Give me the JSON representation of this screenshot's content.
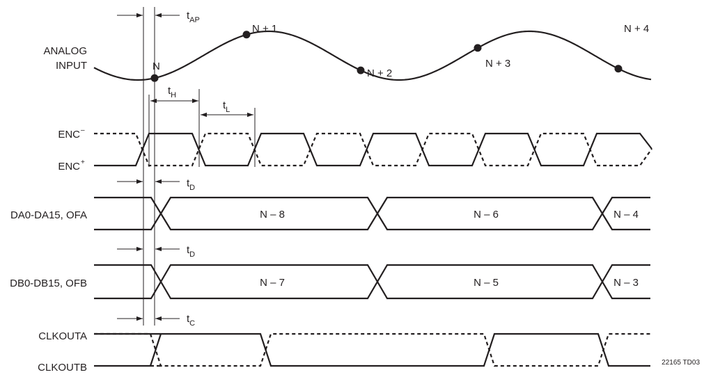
{
  "signals": {
    "analog_input_line1": "ANALOG",
    "analog_input_line2": "INPUT",
    "enc_minus": "ENC",
    "enc_minus_sup": "–",
    "enc_plus": "ENC",
    "enc_plus_sup": "+",
    "da_bus": "DA0-DA15, OFA",
    "db_bus": "DB0-DB15, OFB",
    "clkouta": "CLKOUTA",
    "clkoutb": "CLKOUTB"
  },
  "samples": [
    "N",
    "N + 1",
    "N + 2",
    "N + 3",
    "N + 4"
  ],
  "timing": {
    "t_ap": {
      "base": "t",
      "sub": "AP"
    },
    "t_h": {
      "base": "t",
      "sub": "H"
    },
    "t_l": {
      "base": "t",
      "sub": "L"
    },
    "t_d_a": {
      "base": "t",
      "sub": "D"
    },
    "t_d_b": {
      "base": "t",
      "sub": "D"
    },
    "t_c": {
      "base": "t",
      "sub": "C"
    }
  },
  "da_words": [
    "N – 8",
    "N – 6",
    "N – 4"
  ],
  "db_words": [
    "N – 7",
    "N – 5",
    "N – 3"
  ],
  "figure_id": "22165 TD03"
}
